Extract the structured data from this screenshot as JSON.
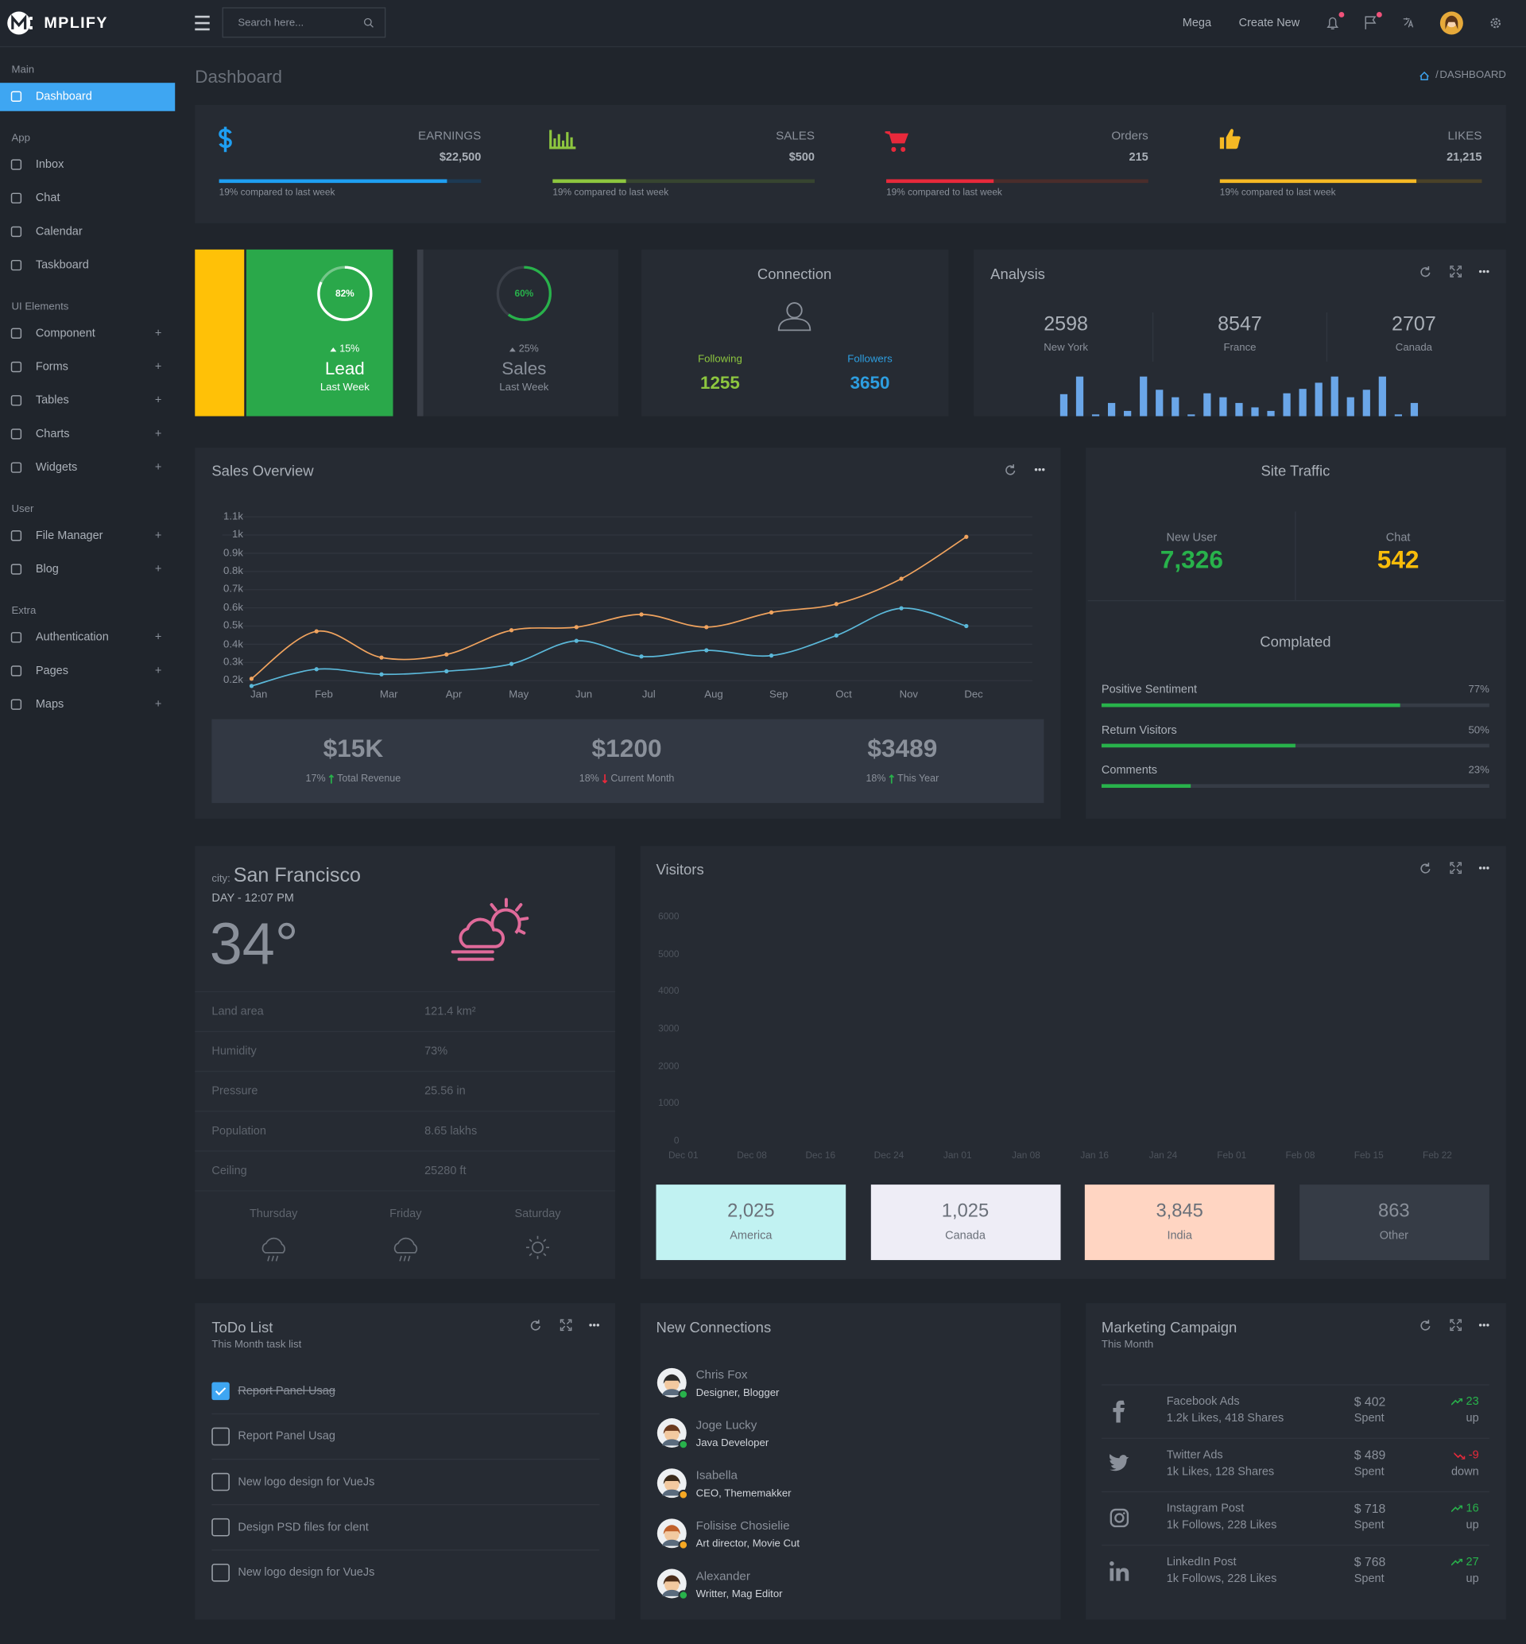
{
  "brand": "MPLIFY",
  "topbar": {
    "search_placeholder": "Search here...",
    "links": [
      "Mega",
      "Create New"
    ]
  },
  "sidebar": [
    {
      "title": "Main",
      "items": [
        {
          "label": "Dashboard",
          "active": true
        }
      ]
    },
    {
      "title": "App",
      "items": [
        {
          "label": "Inbox"
        },
        {
          "label": "Chat"
        },
        {
          "label": "Calendar"
        },
        {
          "label": "Taskboard"
        }
      ]
    },
    {
      "title": "UI Elements",
      "items": [
        {
          "label": "Component",
          "toggle": "+"
        },
        {
          "label": "Forms",
          "toggle": "+"
        },
        {
          "label": "Tables",
          "toggle": "+"
        },
        {
          "label": "Charts",
          "toggle": "+"
        },
        {
          "label": "Widgets",
          "toggle": "+"
        }
      ]
    },
    {
      "title": "User",
      "items": [
        {
          "label": "File Manager",
          "toggle": "+"
        },
        {
          "label": "Blog",
          "toggle": "+"
        }
      ]
    },
    {
      "title": "Extra",
      "items": [
        {
          "label": "Authentication",
          "toggle": "+"
        },
        {
          "label": "Pages",
          "toggle": "+"
        },
        {
          "label": "Maps",
          "toggle": "+"
        }
      ]
    }
  ],
  "page": {
    "title": "Dashboard",
    "breadcrumb": {
      "separator": "/",
      "current": "DASHBOARD"
    }
  },
  "stats": [
    {
      "label": "EARNINGS",
      "value": "$22,500",
      "note": "19% compared to last week",
      "progress": 87,
      "color": "#1e9ff2",
      "track": "#1d3a53"
    },
    {
      "label": "SALES",
      "value": "$500",
      "note": "19% compared to last week",
      "progress": 28,
      "color": "#8dc63f",
      "track": "#374530"
    },
    {
      "label": "Orders",
      "value": "215",
      "note": "19% compared to last week",
      "progress": 41,
      "color": "#e8293b",
      "track": "#4a2d2b"
    },
    {
      "label": "LIKES",
      "value": "21,215",
      "note": "19% compared to last week",
      "progress": 75,
      "color": "#f6b924",
      "track": "#4a4228"
    }
  ],
  "lead": {
    "percent": 82,
    "percent_label": "82%",
    "change": "15%",
    "title": "Lead",
    "subtitle": "Last Week",
    "ring_color": "#ffffff"
  },
  "sales_card": {
    "percent": 60,
    "percent_label": "60%",
    "change": "25%",
    "title": "Sales",
    "subtitle": "Last Week",
    "ring_color": "#28b24b"
  },
  "connection": {
    "title": "Connection",
    "following_label": "Following",
    "following": 1255,
    "followers_label": "Followers",
    "followers": 3650
  },
  "analysis": {
    "title": "Analysis",
    "stats": [
      {
        "value": 2598,
        "label": "New York"
      },
      {
        "value": 8547,
        "label": "France"
      },
      {
        "value": 2707,
        "label": "Canada"
      }
    ],
    "bars": [
      5,
      9,
      0.4,
      3,
      1.2,
      9,
      6,
      4.3,
      0.4,
      5.2,
      4.3,
      3,
      2,
      1.2,
      5.2,
      6.2,
      7.6,
      9,
      4.3,
      6,
      9,
      0.4,
      3
    ],
    "color": "#6aa6e8"
  },
  "sales_overview": {
    "title": "Sales Overview",
    "type": "line",
    "categories": [
      "Jan",
      "Feb",
      "Mar",
      "Apr",
      "May",
      "Jun",
      "Jul",
      "Aug",
      "Sep",
      "Oct",
      "Nov",
      "Dec"
    ],
    "series": [
      {
        "color": "#f0a35e",
        "values": [
          211,
          471,
          327,
          344,
          477,
          494,
          564,
          494,
          575,
          621,
          760,
          990
        ]
      },
      {
        "color": "#5bb8d9",
        "values": [
          171,
          263,
          235,
          252,
          292,
          419,
          333,
          367,
          338,
          448,
          598,
          500
        ]
      }
    ],
    "ylim": [
      150,
      1100
    ],
    "yticks": [
      {
        "value": 200,
        "label": "0.2k"
      },
      {
        "value": 300,
        "label": "0.3k"
      },
      {
        "value": 400,
        "label": "0.4k"
      },
      {
        "value": 500,
        "label": "0.5k"
      },
      {
        "value": 600,
        "label": "0.6k"
      },
      {
        "value": 700,
        "label": "0.7k"
      },
      {
        "value": 800,
        "label": "0.8k"
      },
      {
        "value": 900,
        "label": "0.9k"
      },
      {
        "value": 1000,
        "label": "1k"
      },
      {
        "value": 1100,
        "label": "1.1k"
      }
    ],
    "grid": true,
    "summary": [
      {
        "value": "$15K",
        "change": "17%",
        "direction": "up",
        "label": "Total Revenue"
      },
      {
        "value": "$1200",
        "change": "18%",
        "direction": "down",
        "label": "Current Month"
      },
      {
        "value": "$3489",
        "change": "18%",
        "direction": "up",
        "label": "This Year"
      }
    ]
  },
  "site_traffic": {
    "title": "Site Traffic",
    "metrics": [
      {
        "label": "New User",
        "value": "7,326",
        "color": "#28b24b"
      },
      {
        "label": "Chat",
        "value": "542",
        "color": "#f8bc0a"
      }
    ],
    "progress_title": "Complated",
    "progress": [
      {
        "label": "Positive Sentiment",
        "value": 77,
        "value_label": "77%"
      },
      {
        "label": "Return Visitors",
        "value": 50,
        "value_label": "50%"
      },
      {
        "label": "Comments",
        "value": 23,
        "value_label": "23%"
      }
    ]
  },
  "weather": {
    "city_label": "city:",
    "city": "San Francisco",
    "time": "DAY - 12:07 PM",
    "temperature": "34°",
    "details": [
      {
        "label": "Land area",
        "value": "121.4 km²"
      },
      {
        "label": "Humidity",
        "value": "73%"
      },
      {
        "label": "Pressure",
        "value": "25.56 in"
      },
      {
        "label": "Population",
        "value": "8.65 lakhs"
      },
      {
        "label": "Ceiling",
        "value": "25280 ft"
      }
    ],
    "forecast": [
      "Thursday",
      "Friday",
      "Saturday"
    ]
  },
  "visitors": {
    "title": "Visitors",
    "type": "line",
    "categories": [
      "Dec 01",
      "Dec 08",
      "Dec 16",
      "Dec 24",
      "Jan 01",
      "Jan 08",
      "Jan 16",
      "Jan 24",
      "Feb 01",
      "Feb 08",
      "Feb 15",
      "Feb 22"
    ],
    "ylim": [
      0,
      6000
    ],
    "yticks": [
      0,
      1000,
      2000,
      3000,
      4000,
      5000,
      6000
    ],
    "boxes": [
      {
        "value": "2,025",
        "label": "America",
        "color": "#c1f2f2"
      },
      {
        "value": "1,025",
        "label": "Canada",
        "color": "#eeedf6"
      },
      {
        "value": "3,845",
        "label": "India",
        "color": "#ffd5c2"
      },
      {
        "value": "863",
        "label": "Other",
        "color": "#363c46"
      }
    ]
  },
  "todo": {
    "title": "ToDo List",
    "subtitle": "This Month task list",
    "items": [
      {
        "text": "Report Panel Usag",
        "done": true
      },
      {
        "text": "Report Panel Usag",
        "done": false
      },
      {
        "text": "New logo design for VueJs",
        "done": false
      },
      {
        "text": "Design PSD files for clent",
        "done": false
      },
      {
        "text": "New logo design for VueJs",
        "done": false
      }
    ]
  },
  "connections": {
    "title": "New Connections",
    "people": [
      {
        "name": "Chris Fox",
        "role": "Designer, Blogger",
        "status": "#28b24b"
      },
      {
        "name": "Joge Lucky",
        "role": "Java Developer",
        "status": "#28b24b"
      },
      {
        "name": "Isabella",
        "role": "CEO, Thememakker",
        "status": "#f6a823"
      },
      {
        "name": "Folisise Chosielie",
        "role": "Art director, Movie Cut",
        "status": "#f6a823"
      },
      {
        "name": "Alexander",
        "role": "Writter, Mag Editor",
        "status": "#28b24b"
      }
    ]
  },
  "marketing": {
    "title": "Marketing Campaign",
    "subtitle": "This Month",
    "rows": [
      {
        "name": "Facebook Ads",
        "detail": "1.2k Likes, 418 Shares",
        "spent": "$ 402",
        "spent_label": "Spent",
        "change": "23",
        "trend": "up",
        "color": "#28b24b"
      },
      {
        "name": "Twitter Ads",
        "detail": "1k Likes, 128 Shares",
        "spent": "$ 489",
        "spent_label": "Spent",
        "change": "-9",
        "trend": "down",
        "color": "#e8293b"
      },
      {
        "name": "Instagram Post",
        "detail": "1k Follows, 228 Likes",
        "spent": "$ 718",
        "spent_label": "Spent",
        "change": "16",
        "trend": "up",
        "color": "#28b24b"
      },
      {
        "name": "LinkedIn Post",
        "detail": "1k Follows, 228 Likes",
        "spent": "$ 768",
        "spent_label": "Spent",
        "change": "27",
        "trend": "up",
        "color": "#28b24b"
      }
    ]
  }
}
